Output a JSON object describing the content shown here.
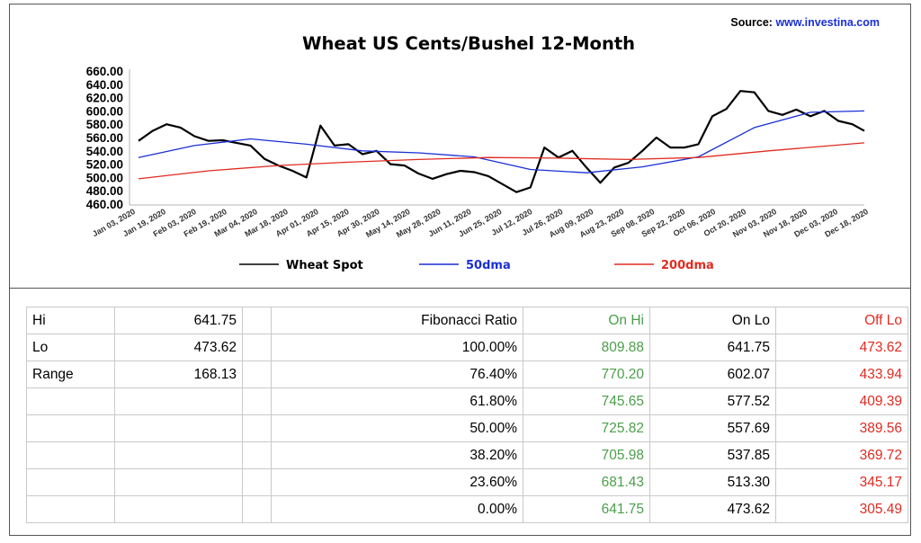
{
  "source": {
    "label": "Source:",
    "url": "www.investina.com"
  },
  "chart_data": {
    "type": "line",
    "title": "Wheat US Cents/Bushel 12-Month",
    "xlabel": "",
    "ylabel": "",
    "ylim": [
      460,
      660
    ],
    "yticks": [
      "660.00",
      "640.00",
      "620.00",
      "600.00",
      "580.00",
      "560.00",
      "540.00",
      "520.00",
      "500.00",
      "480.00",
      "460.00"
    ],
    "x_start": "2020-01-03",
    "x_end": "2020-12-31",
    "xtick_labels": [
      "Jan 03, 2020",
      "Jan 19, 2020",
      "Feb 03, 2020",
      "Feb 19, 2020",
      "Mar 04, 2020",
      "Mar 18, 2020",
      "Apr 01, 2020",
      "Apr 15, 2020",
      "Apr 30, 2020",
      "May 14, 2020",
      "May 28, 2020",
      "Jun 11, 2020",
      "Jun 25, 2020",
      "Jul 12, 2020",
      "Jul 26, 2020",
      "Aug 09, 2020",
      "Aug 23, 2020",
      "Sep 08, 2020",
      "Sep 22, 2020",
      "Oct 06, 2020",
      "Oct 20, 2020",
      "Nov 03, 2020",
      "Nov 18, 2020",
      "Dec 03, 2020",
      "Dec 18, 2020"
    ],
    "legend_position": "bottom",
    "grid": false,
    "series": [
      {
        "name": "Wheat Spot",
        "color": "#000000",
        "x": [
          "2020-01-03",
          "2020-01-10",
          "2020-01-17",
          "2020-01-24",
          "2020-01-31",
          "2020-02-07",
          "2020-02-14",
          "2020-02-21",
          "2020-02-28",
          "2020-03-06",
          "2020-03-13",
          "2020-03-20",
          "2020-03-27",
          "2020-04-03",
          "2020-04-10",
          "2020-04-17",
          "2020-04-24",
          "2020-05-01",
          "2020-05-08",
          "2020-05-15",
          "2020-05-22",
          "2020-05-29",
          "2020-06-05",
          "2020-06-12",
          "2020-06-19",
          "2020-06-26",
          "2020-07-03",
          "2020-07-10",
          "2020-07-17",
          "2020-07-24",
          "2020-07-31",
          "2020-08-07",
          "2020-08-14",
          "2020-08-21",
          "2020-08-28",
          "2020-09-04",
          "2020-09-11",
          "2020-09-18",
          "2020-09-25",
          "2020-10-02",
          "2020-10-09",
          "2020-10-16",
          "2020-10-23",
          "2020-10-30",
          "2020-11-06",
          "2020-11-13",
          "2020-11-20",
          "2020-11-27",
          "2020-12-04",
          "2020-12-11",
          "2020-12-18",
          "2020-12-25",
          "2020-12-31"
        ],
        "values": [
          555,
          570,
          580,
          575,
          562,
          555,
          556,
          552,
          548,
          528,
          518,
          510,
          500,
          578,
          548,
          550,
          535,
          540,
          520,
          518,
          506,
          498,
          505,
          510,
          508,
          502,
          490,
          478,
          485,
          545,
          530,
          540,
          515,
          492,
          515,
          522,
          540,
          560,
          545,
          545,
          550,
          592,
          603,
          630,
          628,
          600,
          594,
          602,
          592,
          600,
          585,
          580,
          570
        ]
      },
      {
        "name": "50dma",
        "color": "#1a2fd6",
        "x": [
          "2020-01-03",
          "2020-01-31",
          "2020-02-28",
          "2020-03-27",
          "2020-04-24",
          "2020-05-22",
          "2020-06-19",
          "2020-07-17",
          "2020-08-14",
          "2020-09-11",
          "2020-10-09",
          "2020-11-06",
          "2020-12-04",
          "2020-12-31"
        ],
        "values": [
          530,
          548,
          558,
          550,
          540,
          537,
          531,
          512,
          507,
          516,
          531,
          575,
          598,
          600
        ]
      },
      {
        "name": "200dma",
        "color": "#e02b22",
        "x": [
          "2020-01-03",
          "2020-02-07",
          "2020-03-13",
          "2020-04-17",
          "2020-05-22",
          "2020-06-26",
          "2020-07-31",
          "2020-09-04",
          "2020-10-09",
          "2020-11-13",
          "2020-12-31"
        ],
        "values": [
          498,
          510,
          518,
          523,
          527,
          530,
          529,
          527,
          530,
          540,
          552
        ]
      }
    ]
  },
  "table": {
    "header": {
      "col3": "Fibonacci  Ratio",
      "col4": "On Hi",
      "col5": "On Lo",
      "col6": "Off Lo"
    },
    "summary": [
      {
        "label": "Hi",
        "value": "641.75"
      },
      {
        "label": "Lo",
        "value": "473.62"
      },
      {
        "label": "Range",
        "value": "168.13"
      }
    ],
    "rows": [
      {
        "ratio": "100.00%",
        "on_hi": "809.88",
        "on_lo": "641.75",
        "off_lo": "473.62"
      },
      {
        "ratio": "76.40%",
        "on_hi": "770.20",
        "on_lo": "602.07",
        "off_lo": "433.94"
      },
      {
        "ratio": "61.80%",
        "on_hi": "745.65",
        "on_lo": "577.52",
        "off_lo": "409.39"
      },
      {
        "ratio": "50.00%",
        "on_hi": "725.82",
        "on_lo": "557.69",
        "off_lo": "389.56"
      },
      {
        "ratio": "38.20%",
        "on_hi": "705.98",
        "on_lo": "537.85",
        "off_lo": "369.72"
      },
      {
        "ratio": "23.60%",
        "on_hi": "681.43",
        "on_lo": "513.30",
        "off_lo": "345.17"
      },
      {
        "ratio": "0.00%",
        "on_hi": "641.75",
        "on_lo": "473.62",
        "off_lo": "305.49"
      }
    ]
  }
}
